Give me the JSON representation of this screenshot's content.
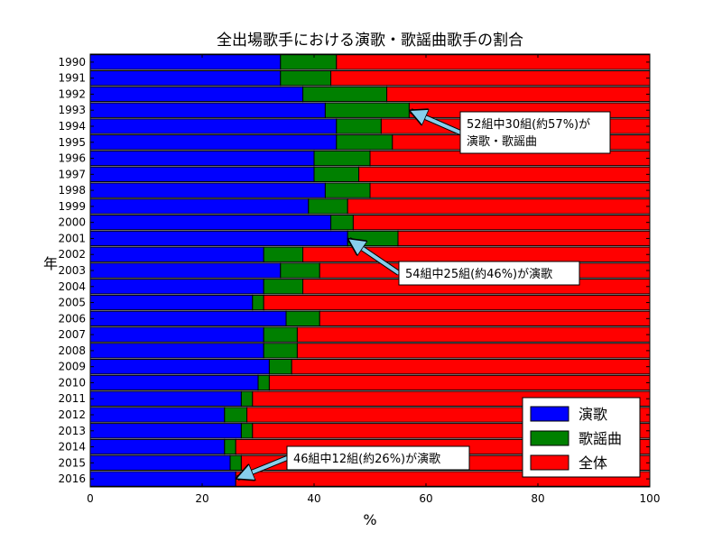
{
  "chart_data": {
    "type": "bar",
    "orientation": "horizontal",
    "stacked": true,
    "title": "全出場歌手における演歌・歌謡曲歌手の割合",
    "xlabel": "%",
    "ylabel": "年",
    "xlim": [
      0,
      100
    ],
    "xticks": [
      "0",
      "20",
      "40",
      "60",
      "80",
      "100"
    ],
    "categories": [
      "1990",
      "1991",
      "1992",
      "1993",
      "1994",
      "1995",
      "1996",
      "1997",
      "1998",
      "1999",
      "2000",
      "2001",
      "2002",
      "2003",
      "2004",
      "2005",
      "2006",
      "2007",
      "2008",
      "2009",
      "2010",
      "2011",
      "2012",
      "2013",
      "2014",
      "2015",
      "2016"
    ],
    "series": [
      {
        "name": "演歌",
        "color": "#0000ff",
        "values": [
          34,
          34,
          38,
          42,
          44,
          44,
          40,
          40,
          42,
          39,
          43,
          46,
          31,
          34,
          31,
          29,
          35,
          31,
          31,
          32,
          30,
          27,
          24,
          27,
          24,
          25,
          26
        ]
      },
      {
        "name": "歌謡曲",
        "color": "#008000",
        "values": [
          10,
          9,
          15,
          15,
          8,
          10,
          10,
          8,
          8,
          7,
          4,
          9,
          7,
          7,
          7,
          2,
          6,
          6,
          6,
          4,
          2,
          2,
          4,
          2,
          2,
          2,
          0
        ]
      },
      {
        "name": "全体",
        "color": "#ff0000",
        "values": [
          56,
          57,
          47,
          43,
          48,
          46,
          50,
          52,
          50,
          54,
          53,
          45,
          62,
          59,
          62,
          69,
          59,
          63,
          63,
          64,
          68,
          71,
          72,
          71,
          74,
          73,
          74
        ]
      }
    ],
    "legend": {
      "position": "bottom-right"
    },
    "grid": false,
    "annotations": [
      {
        "lines": [
          "52組中30組(約57%)が",
          "演歌・歌謡曲"
        ],
        "target_category": "1993",
        "target_x": 57
      },
      {
        "lines": [
          "54組中25組(約46%)が演歌"
        ],
        "target_category": "2001",
        "target_x": 46
      },
      {
        "lines": [
          "46組中12組(約26%)が演歌"
        ],
        "target_category": "2016",
        "target_x": 26
      }
    ]
  }
}
